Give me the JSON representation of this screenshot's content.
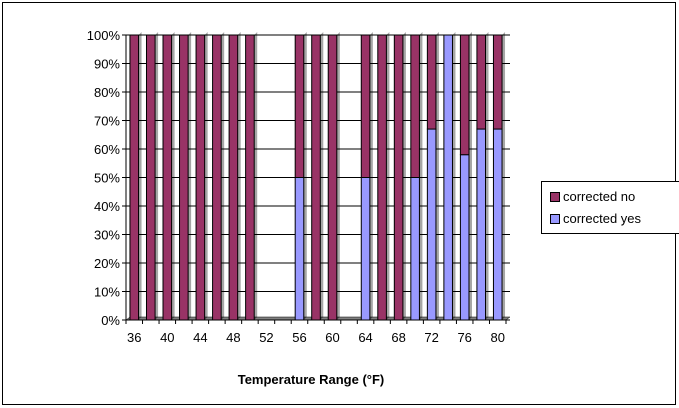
{
  "chart_data": {
    "type": "bar",
    "stacked": true,
    "categories": [
      "36",
      "38",
      "40",
      "42",
      "44",
      "46",
      "48",
      "50",
      "52",
      "54",
      "56",
      "58",
      "60",
      "62",
      "64",
      "66",
      "68",
      "70",
      "72",
      "74",
      "76",
      "78",
      "80"
    ],
    "x_tick_labels": [
      "36",
      "40",
      "44",
      "48",
      "52",
      "56",
      "60",
      "64",
      "68",
      "72",
      "76",
      "80"
    ],
    "series": [
      {
        "name": "corrected yes",
        "color": "#9999ff",
        "values": [
          0,
          0,
          0,
          0,
          0,
          0,
          0,
          0,
          0,
          0,
          50,
          0,
          0,
          0,
          50,
          0,
          0,
          50,
          67,
          100,
          58,
          67,
          67
        ]
      },
      {
        "name": "corrected no",
        "color": "#993366",
        "values": [
          100,
          100,
          100,
          100,
          100,
          100,
          100,
          100,
          0,
          0,
          50,
          100,
          100,
          0,
          50,
          100,
          100,
          50,
          33,
          0,
          42,
          33,
          33
        ]
      }
    ],
    "y_tick_labels": [
      "0%",
      "10%",
      "20%",
      "30%",
      "40%",
      "50%",
      "60%",
      "70%",
      "80%",
      "90%",
      "100%"
    ],
    "ylim": [
      0,
      100
    ],
    "xlabel": "Temperature Range (°F)",
    "grid": "horizontal",
    "legend_position": "right"
  },
  "legend": {
    "items": [
      {
        "label": "corrected no",
        "color": "#993366"
      },
      {
        "label": "corrected yes",
        "color": "#9999ff"
      }
    ]
  }
}
